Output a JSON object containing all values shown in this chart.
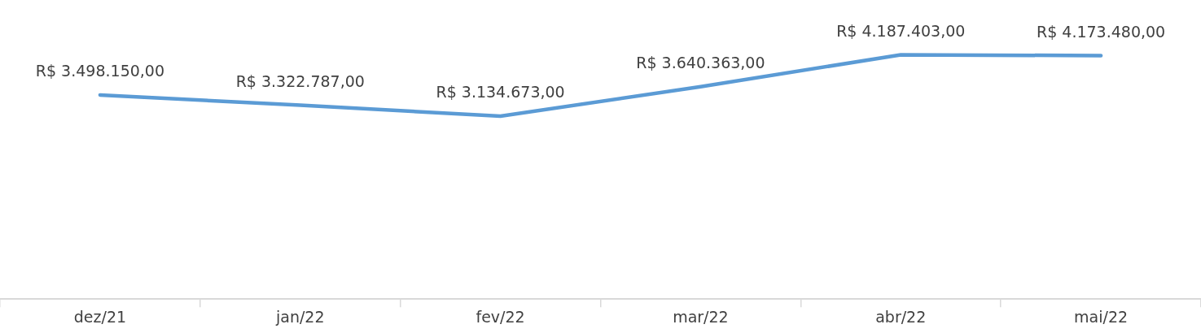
{
  "chart_data": {
    "type": "line",
    "categories": [
      "dez/21",
      "jan/22",
      "fev/22",
      "mar/22",
      "abr/22",
      "mai/22"
    ],
    "series": [
      {
        "color": "#5b9bd5",
        "values": [
          3498150,
          3322787,
          3134673,
          3640363,
          4187403,
          4173480
        ],
        "value_labels": [
          "R$ 3.498.150,00",
          "R$ 3.322.787,00",
          "R$ 3.134.673,00",
          "R$ 3.640.363,00",
          "R$ 4.187.403,00",
          "R$ 4.173.480,00"
        ]
      }
    ],
    "marker": "none",
    "grid": false,
    "legend": false
  }
}
